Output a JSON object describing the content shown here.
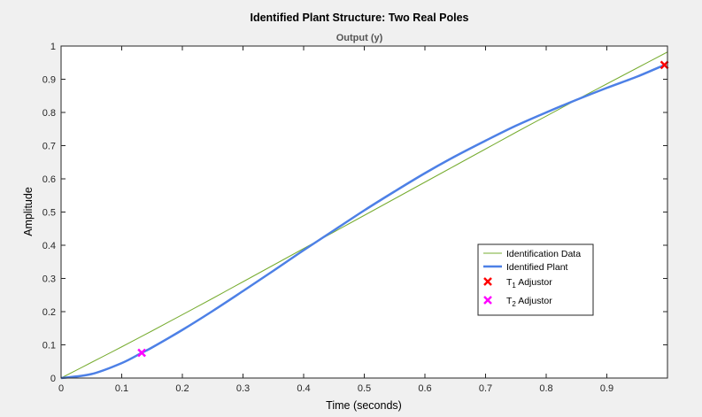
{
  "figure": {
    "background": "#f0f0f0",
    "axes_background": "#ffffff"
  },
  "chart_data": {
    "type": "line",
    "title": "Identified Plant Structure: Two Real Poles",
    "subtitle": "Output (y)",
    "xlabel": "Time (seconds)",
    "ylabel": "Amplitude",
    "xlim": [
      0,
      1
    ],
    "ylim": [
      0,
      1
    ],
    "xticks": [
      0,
      0.1,
      0.2,
      0.3,
      0.4,
      0.5,
      0.6,
      0.7,
      0.8,
      0.9
    ],
    "xtick_labels": [
      "0",
      "0.1",
      "0.2",
      "0.3",
      "0.4",
      "0.5",
      "0.6",
      "0.7",
      "0.8",
      "0.9"
    ],
    "yticks": [
      0,
      0.1,
      0.2,
      0.3,
      0.4,
      0.5,
      0.6,
      0.7,
      0.8,
      0.9,
      1
    ],
    "ytick_labels": [
      "0",
      "0.1",
      "0.2",
      "0.3",
      "0.4",
      "0.5",
      "0.6",
      "0.7",
      "0.8",
      "0.9",
      "1"
    ],
    "grid": false,
    "legend_placement": "lower-right",
    "series": [
      {
        "name": "Identification Data",
        "kind": "line",
        "color": "#77ac30",
        "x": [
          0,
          0.05,
          0.1,
          0.15,
          0.2,
          0.25,
          0.3,
          0.35,
          0.4,
          0.45,
          0.5,
          0.55,
          0.6,
          0.65,
          0.7,
          0.75,
          0.8,
          0.85,
          0.9,
          0.95,
          1.0
        ],
        "y": [
          0,
          0.047,
          0.094,
          0.142,
          0.191,
          0.24,
          0.29,
          0.34,
          0.39,
          0.44,
          0.49,
          0.54,
          0.59,
          0.64,
          0.69,
          0.74,
          0.789,
          0.838,
          0.886,
          0.934,
          0.982
        ]
      },
      {
        "name": "Identified Plant",
        "kind": "line",
        "color": "#4d80e6",
        "x": [
          0,
          0.05,
          0.1,
          0.133,
          0.15,
          0.2,
          0.25,
          0.3,
          0.35,
          0.4,
          0.45,
          0.5,
          0.55,
          0.6,
          0.65,
          0.7,
          0.75,
          0.8,
          0.85,
          0.9,
          0.95,
          0.995
        ],
        "y": [
          0,
          0.012,
          0.045,
          0.076,
          0.092,
          0.145,
          0.202,
          0.262,
          0.323,
          0.385,
          0.445,
          0.505,
          0.562,
          0.617,
          0.668,
          0.715,
          0.76,
          0.8,
          0.838,
          0.874,
          0.908,
          0.943
        ]
      },
      {
        "name": "T₁ Adjustor",
        "label_base": "T",
        "label_sub": "1",
        "label_rest": " Adjustor",
        "kind": "marker",
        "color": "#ff0000",
        "x": [
          0.995
        ],
        "y": [
          0.943
        ]
      },
      {
        "name": "T₂ Adjustor",
        "label_base": "T",
        "label_sub": "2",
        "label_rest": " Adjustor",
        "kind": "marker",
        "color": "#ff00ff",
        "x": [
          0.133
        ],
        "y": [
          0.076
        ]
      }
    ]
  }
}
